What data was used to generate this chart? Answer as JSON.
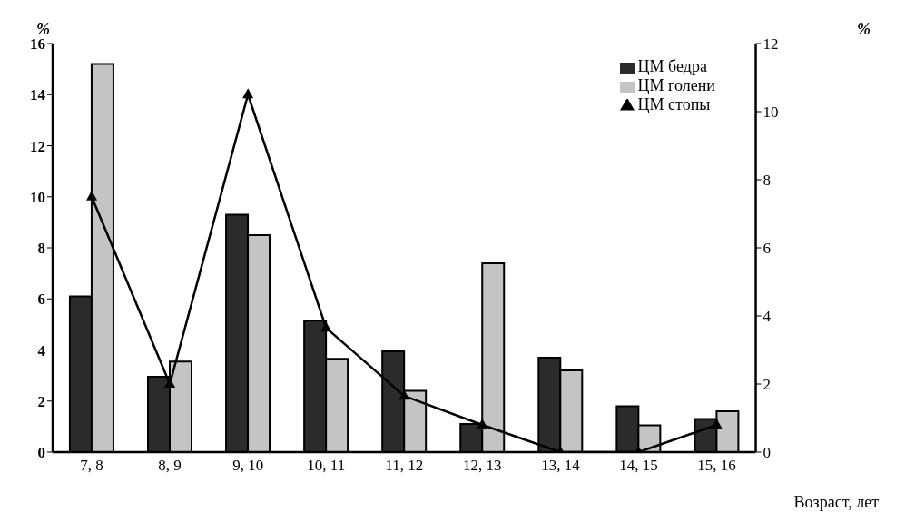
{
  "chart_data": {
    "type": "bar",
    "ylabel": "%",
    "y2label": "%",
    "xlabel": "Возраст, лет",
    "categories": [
      "7, 8",
      "8, 9",
      "9, 10",
      "10, 11",
      "11, 12",
      "12, 13",
      "13, 14",
      "14, 15",
      "15, 16"
    ],
    "series": [
      {
        "name": "ЦМ бедра",
        "color": "#2b2b2b",
        "values": [
          6.1,
          2.95,
          9.3,
          5.15,
          3.95,
          1.1,
          3.7,
          1.8,
          1.3
        ]
      },
      {
        "name": "ЦМ голени",
        "color": "#c4c4c4",
        "values": [
          15.2,
          3.55,
          8.5,
          3.65,
          2.4,
          7.4,
          3.2,
          1.05,
          1.6
        ]
      },
      {
        "name": "ЦМ стопы",
        "type": "line",
        "axis": "y2",
        "color": "#000000",
        "marker": "triangle",
        "values": [
          7.5,
          2.0,
          10.5,
          3.65,
          1.65,
          0.8,
          0,
          0,
          0.8
        ]
      }
    ],
    "ylim": [
      0,
      16
    ],
    "yticks": [
      0,
      2,
      4,
      6,
      8,
      10,
      12,
      14,
      16
    ],
    "y2lim": [
      0,
      12
    ],
    "y2ticks": [
      0,
      2,
      4,
      6,
      8,
      10,
      12
    ],
    "grid": false,
    "legend": "top right"
  }
}
